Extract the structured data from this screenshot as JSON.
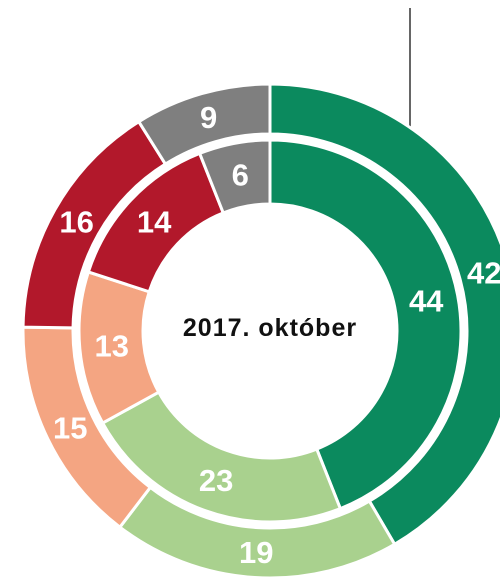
{
  "chart_data": {
    "type": "nested_donut",
    "center_label": "2017. október",
    "colors": [
      "#0b8a5e",
      "#a9d18e",
      "#f4a582",
      "#b2182b",
      "#7f7f7f"
    ],
    "rings": [
      {
        "values": [
          42,
          19,
          15,
          16,
          9
        ]
      },
      {
        "values": [
          44,
          23,
          13,
          14,
          6
        ]
      }
    ]
  }
}
